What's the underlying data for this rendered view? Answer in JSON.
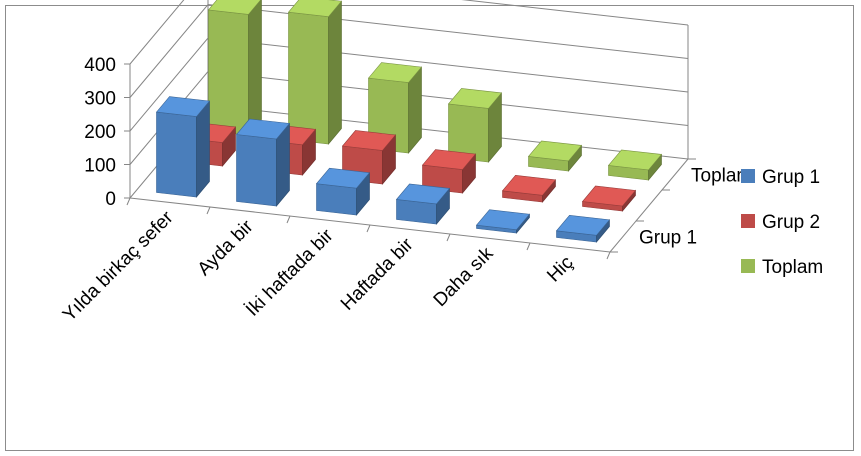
{
  "chart_data": {
    "type": "bar",
    "subtype": "3d-column",
    "categories": [
      "Yılda birkaç sefer",
      "Ayda bir",
      "İki haftada bir",
      "Haftada bir",
      "Daha sık",
      "Hiç"
    ],
    "series": [
      {
        "name": "Grup 1",
        "values": [
          240,
          200,
          80,
          60,
          10,
          20
        ],
        "color": "#4a7ebb"
      },
      {
        "name": "Grup 2",
        "values": [
          70,
          90,
          100,
          70,
          20,
          15
        ],
        "color": "#be4b48"
      },
      {
        "name": "Toplam",
        "values": [
          360,
          380,
          210,
          160,
          30,
          30
        ],
        "color": "#98b954"
      }
    ],
    "depth_labels": [
      "Toplam",
      "Grup 1"
    ],
    "y_ticks": [
      "0",
      "100",
      "200",
      "300",
      "400"
    ],
    "ylim": [
      0,
      400
    ],
    "grid": true,
    "legend_position": "right",
    "legend": [
      "Grup 1",
      "Grup 2",
      "Toplam"
    ]
  }
}
